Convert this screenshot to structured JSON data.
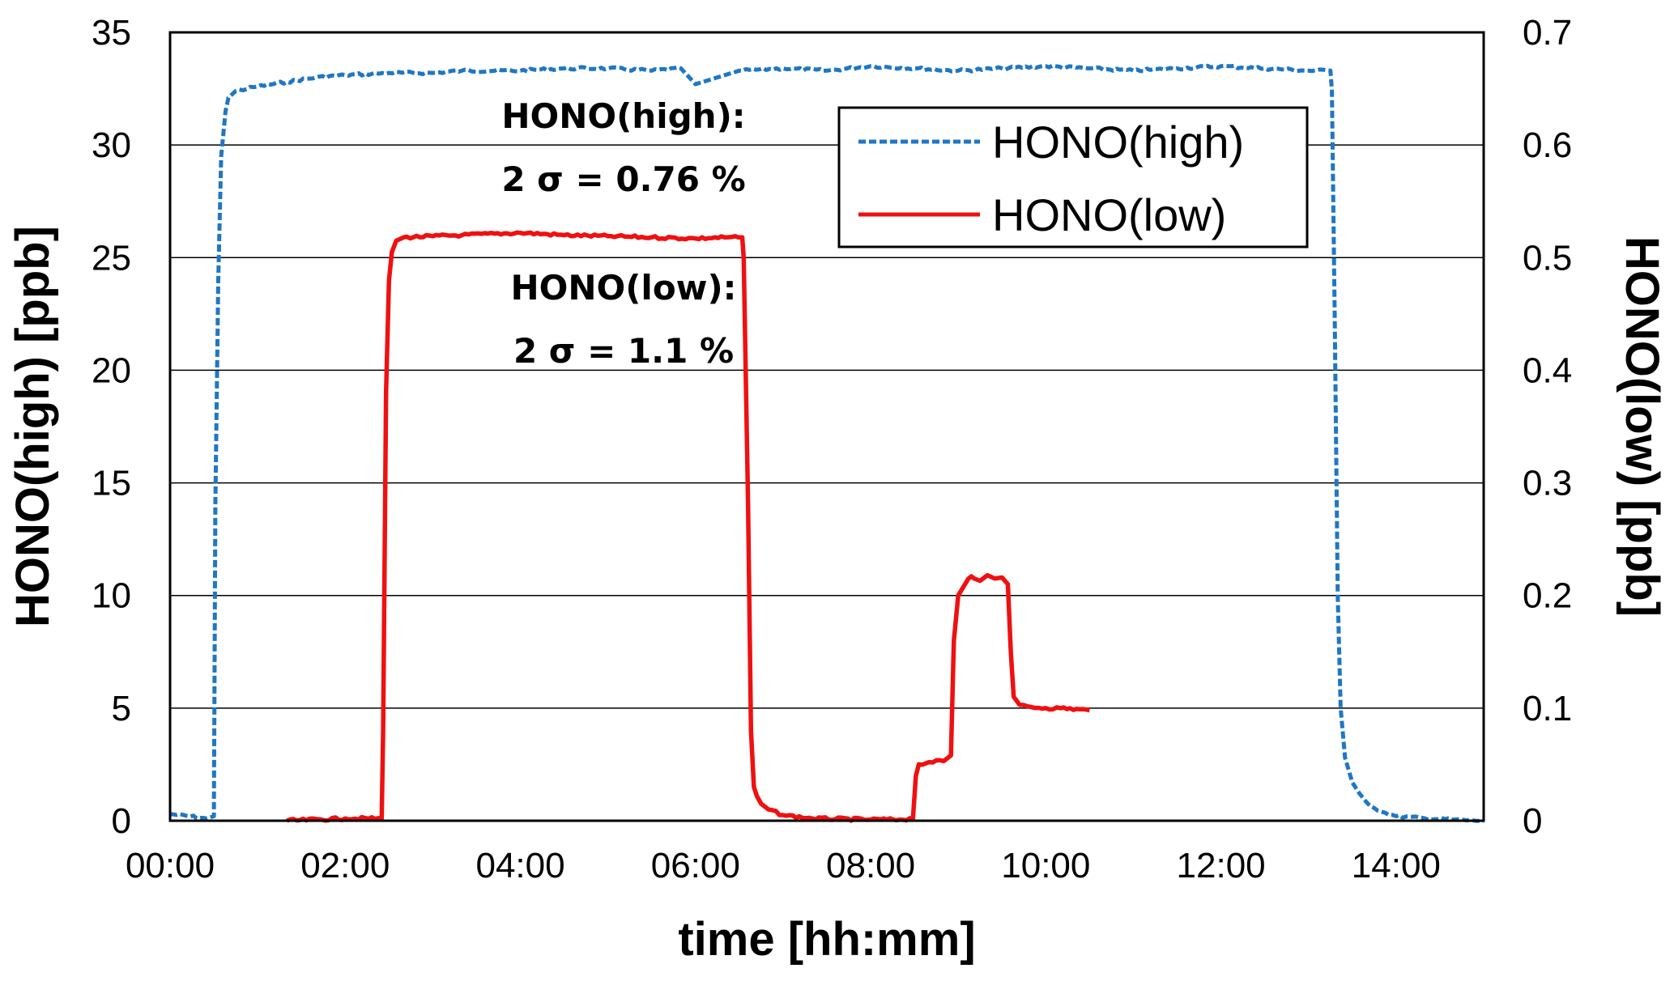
{
  "chart_data": {
    "type": "line",
    "title": "",
    "xlabel": "time [hh:mm]",
    "ylabel_left": "HONO(high) [ppb]",
    "ylabel_right": "HONO(low) [ppb]",
    "x_unit": "minutes",
    "xlim": [
      0,
      900
    ],
    "x_ticks": [
      0,
      120,
      240,
      360,
      480,
      600,
      720,
      840
    ],
    "x_tick_labels": [
      "00:00",
      "02:00",
      "04:00",
      "06:00",
      "08:00",
      "10:00",
      "12:00",
      "14:00"
    ],
    "ylim_left": [
      0,
      35
    ],
    "y_left_ticks": [
      0,
      5,
      10,
      15,
      20,
      25,
      30,
      35
    ],
    "y_left_tick_labels": [
      "0",
      "5",
      "10",
      "15",
      "20",
      "25",
      "30",
      "35"
    ],
    "ylim_right": [
      0,
      0.7
    ],
    "y_right_ticks": [
      0,
      0.1,
      0.2,
      0.3,
      0.4,
      0.5,
      0.6,
      0.7
    ],
    "y_right_tick_labels": [
      "0",
      "0.1",
      "0.2",
      "0.3",
      "0.4",
      "0.5",
      "0.6",
      "0.7"
    ],
    "grid": "horizontal",
    "legend_position": "top-right",
    "series": [
      {
        "name": "HONO(high)",
        "axis": "left",
        "color": "#1f77c4",
        "style": "dashed",
        "x": [
          0,
          25,
          30,
          31,
          33,
          35,
          38,
          40,
          45,
          60,
          80,
          100,
          120,
          150,
          180,
          200,
          240,
          270,
          300,
          330,
          350,
          360,
          390,
          420,
          450,
          480,
          510,
          540,
          570,
          600,
          630,
          660,
          690,
          720,
          750,
          780,
          795,
          796,
          798,
          800,
          802,
          805,
          810,
          815,
          820,
          830,
          840,
          860,
          880,
          900
        ],
        "y": [
          0.3,
          0.1,
          0.2,
          14,
          24,
          29.5,
          31.5,
          32.1,
          32.4,
          32.6,
          32.8,
          33.0,
          33.1,
          33.2,
          33.2,
          33.3,
          33.3,
          33.4,
          33.4,
          33.3,
          33.4,
          32.7,
          33.3,
          33.4,
          33.3,
          33.5,
          33.4,
          33.3,
          33.4,
          33.5,
          33.4,
          33.3,
          33.4,
          33.5,
          33.4,
          33.3,
          33.3,
          32.4,
          22,
          10,
          5.0,
          2.8,
          1.7,
          1.2,
          0.8,
          0.4,
          0.2,
          0.1,
          0.05,
          0.0
        ]
      },
      {
        "name": "HONO(low)",
        "axis": "right",
        "color": "#ee1111",
        "style": "solid",
        "x": [
          80,
          120,
          145,
          146,
          148,
          150,
          152,
          155,
          160,
          180,
          200,
          240,
          270,
          300,
          330,
          360,
          380,
          392,
          393,
          396,
          398,
          400,
          402,
          405,
          410,
          420,
          440,
          480,
          500,
          509,
          511,
          513,
          520,
          530,
          535,
          537,
          540,
          547,
          549,
          551,
          555,
          560,
          565,
          570,
          574,
          576,
          578,
          582,
          590,
          600,
          610,
          630
        ],
        "y": [
          0,
          0.002,
          0.002,
          0.08,
          0.38,
          0.48,
          0.505,
          0.515,
          0.518,
          0.519,
          0.52,
          0.522,
          0.52,
          0.519,
          0.518,
          0.517,
          0.518,
          0.518,
          0.5,
          0.28,
          0.08,
          0.03,
          0.022,
          0.015,
          0.01,
          0.005,
          0.002,
          0.001,
          0.001,
          0.002,
          0.04,
          0.05,
          0.052,
          0.053,
          0.058,
          0.16,
          0.2,
          0.215,
          0.217,
          0.215,
          0.213,
          0.218,
          0.215,
          0.216,
          0.21,
          0.15,
          0.11,
          0.103,
          0.101,
          0.1,
          0.1,
          0.098
        ]
      }
    ],
    "annotations": [
      {
        "line1": "HONO(high):",
        "line2": "2 σ = 0.76 %"
      },
      {
        "line1": "HONO(low):",
        "line2": "2 σ = 1.1 %"
      }
    ]
  }
}
